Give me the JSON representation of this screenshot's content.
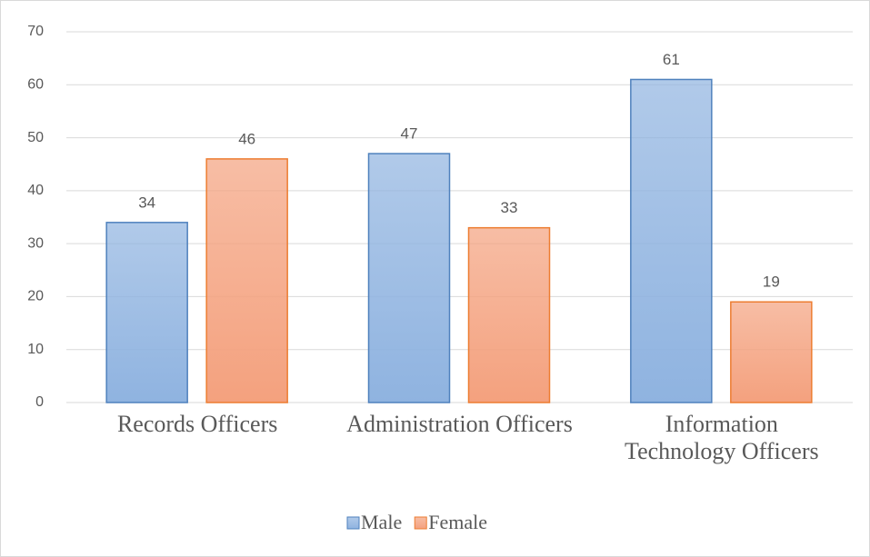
{
  "chart_data": {
    "type": "bar",
    "categories": [
      "Records Officers",
      "Administration Officers",
      "Information Technology Officers"
    ],
    "series": [
      {
        "name": "Male",
        "color": "#8fb3e0",
        "stroke": "#4f81bd",
        "values": [
          34,
          47,
          61
        ]
      },
      {
        "name": "Female",
        "color": "#f4a17e",
        "stroke": "#ed7d31",
        "values": [
          46,
          33,
          19
        ]
      }
    ],
    "ylim": [
      0,
      70
    ],
    "yticks": [
      0,
      10,
      20,
      30,
      40,
      50,
      60,
      70
    ],
    "grid": true,
    "legend": "bottom"
  }
}
